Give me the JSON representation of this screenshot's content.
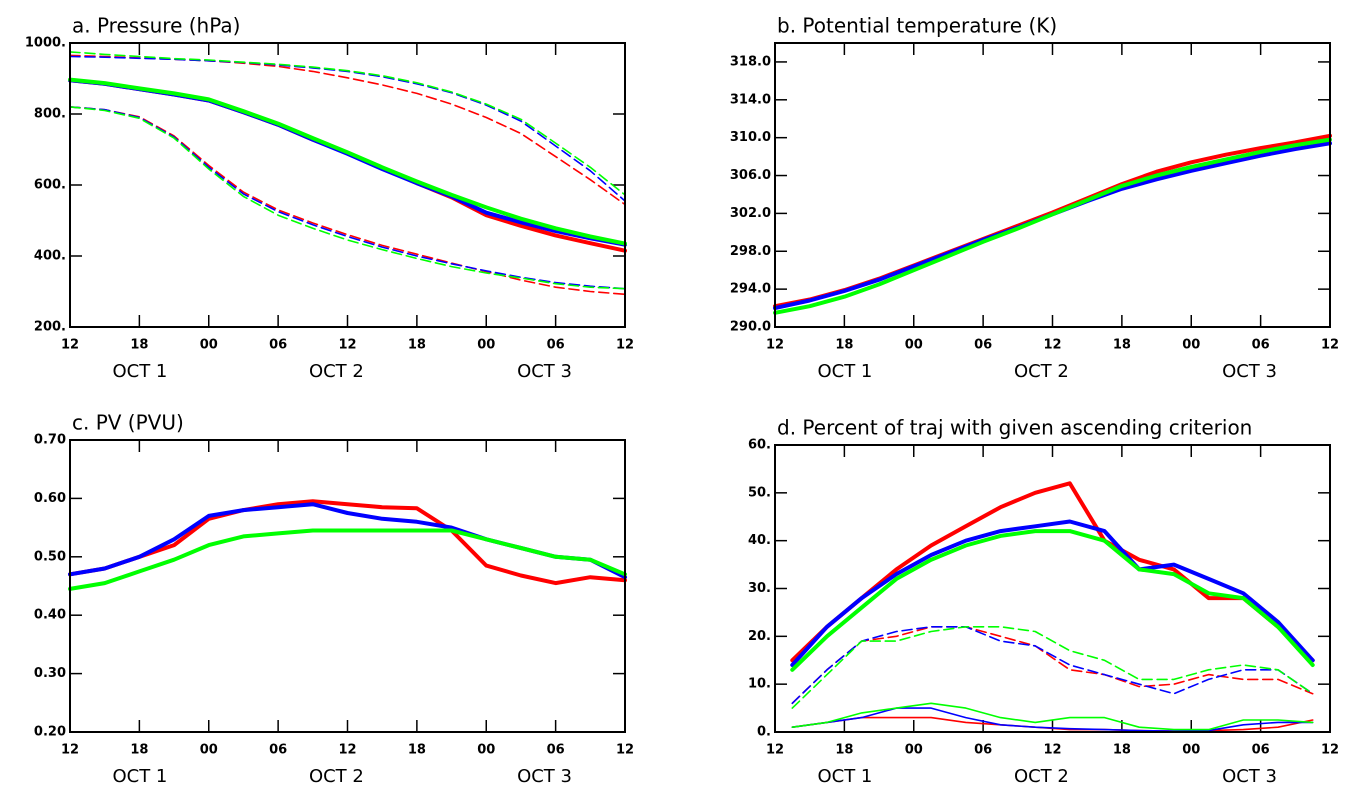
{
  "chart_data": [
    {
      "type": "line",
      "title": "a. Pressure (hPa)",
      "x": [
        0,
        3,
        6,
        9,
        12,
        15,
        18,
        21,
        24,
        27,
        30,
        33,
        36,
        39,
        42,
        45,
        48
      ],
      "xlim": [
        0,
        48
      ],
      "xticks": [
        {
          "value": 0,
          "label": "12"
        },
        {
          "value": 6,
          "label": "18"
        },
        {
          "value": 12,
          "label": "00"
        },
        {
          "value": 18,
          "label": "06"
        },
        {
          "value": 24,
          "label": "12"
        },
        {
          "value": 30,
          "label": "18"
        },
        {
          "value": 36,
          "label": "00"
        },
        {
          "value": 42,
          "label": "06"
        },
        {
          "value": 48,
          "label": "12"
        }
      ],
      "date_labels": [
        "OCT 1",
        "OCT 2",
        "OCT 3"
      ],
      "ylim": [
        200,
        1000
      ],
      "yticks": [
        {
          "value": 200,
          "label": "200."
        },
        {
          "value": 400,
          "label": "400."
        },
        {
          "value": 600,
          "label": "600."
        },
        {
          "value": 800,
          "label": "800."
        },
        {
          "value": 1000,
          "label": "1000."
        }
      ],
      "series": [
        {
          "color": "#ff0000",
          "style": "thick",
          "values": [
            895,
            885,
            870,
            855,
            838,
            805,
            770,
            728,
            690,
            648,
            605,
            565,
            515,
            485,
            458,
            436,
            415
          ]
        },
        {
          "color": "#0000ff",
          "style": "thick",
          "values": [
            895,
            885,
            870,
            855,
            838,
            805,
            770,
            728,
            688,
            645,
            605,
            568,
            522,
            495,
            470,
            450,
            432
          ]
        },
        {
          "color": "#00ff00",
          "style": "thick",
          "values": [
            897,
            887,
            872,
            858,
            841,
            808,
            773,
            732,
            692,
            650,
            610,
            572,
            537,
            505,
            478,
            455,
            435
          ]
        },
        {
          "color": "#ff0000",
          "style": "dashed",
          "values": [
            965,
            962,
            958,
            954,
            950,
            943,
            934,
            920,
            902,
            882,
            858,
            828,
            790,
            745,
            680,
            615,
            545
          ]
        },
        {
          "color": "#0000ff",
          "style": "dashed",
          "values": [
            962,
            960,
            957,
            954,
            950,
            945,
            938,
            930,
            920,
            905,
            885,
            860,
            825,
            780,
            710,
            640,
            555
          ]
        },
        {
          "color": "#00ff00",
          "style": "dashed",
          "values": [
            975,
            968,
            962,
            956,
            952,
            946,
            940,
            932,
            922,
            908,
            888,
            862,
            828,
            785,
            718,
            650,
            572
          ]
        },
        {
          "color": "#ff0000",
          "style": "dashed",
          "values": [
            820,
            812,
            792,
            738,
            655,
            580,
            530,
            493,
            460,
            430,
            405,
            380,
            356,
            332,
            312,
            300,
            292
          ]
        },
        {
          "color": "#0000ff",
          "style": "dashed",
          "values": [
            820,
            812,
            790,
            735,
            650,
            575,
            525,
            488,
            455,
            425,
            400,
            378,
            358,
            340,
            325,
            315,
            308
          ]
        },
        {
          "color": "#00ff00",
          "style": "dashed",
          "values": [
            820,
            810,
            788,
            732,
            645,
            568,
            515,
            478,
            445,
            418,
            393,
            370,
            352,
            338,
            322,
            312,
            308
          ]
        }
      ]
    },
    {
      "type": "line",
      "title": "b. Potential temperature (K)",
      "x": [
        0,
        3,
        6,
        9,
        12,
        15,
        18,
        21,
        24,
        27,
        30,
        33,
        36,
        39,
        42,
        45,
        48
      ],
      "xlim": [
        0,
        48
      ],
      "xticks": [
        {
          "value": 0,
          "label": "12"
        },
        {
          "value": 6,
          "label": "18"
        },
        {
          "value": 12,
          "label": "00"
        },
        {
          "value": 18,
          "label": "06"
        },
        {
          "value": 24,
          "label": "12"
        },
        {
          "value": 30,
          "label": "18"
        },
        {
          "value": 36,
          "label": "00"
        },
        {
          "value": 42,
          "label": "06"
        },
        {
          "value": 48,
          "label": "12"
        }
      ],
      "date_labels": [
        "OCT 1",
        "OCT 2",
        "OCT 3"
      ],
      "ylim": [
        290,
        320
      ],
      "yticks": [
        {
          "value": 290,
          "label": "290.0"
        },
        {
          "value": 294,
          "label": "294.0"
        },
        {
          "value": 298,
          "label": "298.0"
        },
        {
          "value": 302,
          "label": "302.0"
        },
        {
          "value": 306,
          "label": "306.0"
        },
        {
          "value": 310,
          "label": "310.0"
        },
        {
          "value": 314,
          "label": "314.0"
        },
        {
          "value": 318,
          "label": "318.0"
        }
      ],
      "series": [
        {
          "color": "#ff0000",
          "style": "thick",
          "values": [
            292.2,
            292.9,
            293.9,
            295.1,
            296.5,
            297.9,
            299.3,
            300.7,
            302.1,
            303.6,
            305.1,
            306.4,
            307.4,
            308.2,
            308.9,
            309.5,
            310.2
          ]
        },
        {
          "color": "#0000ff",
          "style": "thick",
          "values": [
            292.0,
            292.8,
            293.8,
            295.0,
            296.4,
            297.8,
            299.2,
            300.5,
            301.9,
            303.3,
            304.6,
            305.6,
            306.5,
            307.3,
            308.1,
            308.8,
            309.4
          ]
        },
        {
          "color": "#00ff00",
          "style": "thick",
          "values": [
            291.5,
            292.2,
            293.2,
            294.5,
            296.0,
            297.5,
            299.0,
            300.4,
            301.9,
            303.4,
            304.9,
            306.0,
            306.9,
            307.7,
            308.5,
            309.2,
            309.8
          ]
        }
      ]
    },
    {
      "type": "line",
      "title": "c. PV (PVU)",
      "x": [
        0,
        3,
        6,
        9,
        12,
        15,
        18,
        21,
        24,
        27,
        30,
        33,
        36,
        39,
        42,
        45,
        48
      ],
      "xlim": [
        0,
        48
      ],
      "xticks": [
        {
          "value": 0,
          "label": "12"
        },
        {
          "value": 6,
          "label": "18"
        },
        {
          "value": 12,
          "label": "00"
        },
        {
          "value": 18,
          "label": "06"
        },
        {
          "value": 24,
          "label": "12"
        },
        {
          "value": 30,
          "label": "18"
        },
        {
          "value": 36,
          "label": "00"
        },
        {
          "value": 42,
          "label": "06"
        },
        {
          "value": 48,
          "label": "12"
        }
      ],
      "date_labels": [
        "OCT 1",
        "OCT 2",
        "OCT 3"
      ],
      "ylim": [
        0.2,
        0.7
      ],
      "yticks": [
        {
          "value": 0.2,
          "label": "0.20"
        },
        {
          "value": 0.3,
          "label": "0.30"
        },
        {
          "value": 0.4,
          "label": "0.40"
        },
        {
          "value": 0.5,
          "label": "0.50"
        },
        {
          "value": 0.6,
          "label": "0.60"
        },
        {
          "value": 0.7,
          "label": "0.70"
        }
      ],
      "series": [
        {
          "color": "#ff0000",
          "style": "thick",
          "values": [
            0.47,
            0.48,
            0.5,
            0.52,
            0.565,
            0.58,
            0.59,
            0.595,
            0.59,
            0.585,
            0.583,
            0.545,
            0.485,
            0.468,
            0.455,
            0.465,
            0.46
          ]
        },
        {
          "color": "#0000ff",
          "style": "thick",
          "values": [
            0.47,
            0.48,
            0.5,
            0.53,
            0.57,
            0.58,
            0.585,
            0.59,
            0.575,
            0.565,
            0.56,
            0.55,
            0.53,
            0.515,
            0.5,
            0.495,
            0.465
          ]
        },
        {
          "color": "#00ff00",
          "style": "thick",
          "values": [
            0.445,
            0.455,
            0.475,
            0.495,
            0.52,
            0.535,
            0.54,
            0.545,
            0.545,
            0.545,
            0.545,
            0.545,
            0.53,
            0.515,
            0.5,
            0.495,
            0.47
          ]
        }
      ]
    },
    {
      "type": "line",
      "title": "d. Percent of traj with given ascending criterion",
      "x": [
        1.5,
        4.5,
        7.5,
        10.5,
        13.5,
        16.5,
        19.5,
        22.5,
        25.5,
        28.5,
        31.5,
        34.5,
        37.5,
        40.5,
        43.5,
        46.5
      ],
      "xlim": [
        0,
        48
      ],
      "xticks": [
        {
          "value": 0,
          "label": "12"
        },
        {
          "value": 6,
          "label": "18"
        },
        {
          "value": 12,
          "label": "00"
        },
        {
          "value": 18,
          "label": "06"
        },
        {
          "value": 24,
          "label": "12"
        },
        {
          "value": 30,
          "label": "18"
        },
        {
          "value": 36,
          "label": "00"
        },
        {
          "value": 42,
          "label": "06"
        },
        {
          "value": 48,
          "label": "12"
        }
      ],
      "date_labels": [
        "OCT 1",
        "OCT 2",
        "OCT 3"
      ],
      "ylim": [
        0,
        60
      ],
      "yticks": [
        {
          "value": 0,
          "label": "0."
        },
        {
          "value": 10,
          "label": "10."
        },
        {
          "value": 20,
          "label": "20."
        },
        {
          "value": 30,
          "label": "30."
        },
        {
          "value": 40,
          "label": "40."
        },
        {
          "value": 50,
          "label": "50."
        },
        {
          "value": 60,
          "label": "60."
        }
      ],
      "series": [
        {
          "color": "#ff0000",
          "style": "thick",
          "values": [
            15,
            22,
            28,
            34,
            39,
            43,
            47,
            50,
            52,
            40,
            36,
            34,
            28,
            28,
            22,
            15
          ]
        },
        {
          "color": "#0000ff",
          "style": "thick",
          "values": [
            14,
            22,
            28,
            33,
            37,
            40,
            42,
            43,
            44,
            42,
            34,
            35,
            32,
            29,
            23,
            15
          ]
        },
        {
          "color": "#00ff00",
          "style": "thick",
          "values": [
            13,
            20,
            26,
            32,
            36,
            39,
            41,
            42,
            42,
            40,
            34,
            33,
            29,
            28,
            22,
            14
          ]
        },
        {
          "color": "#ff0000",
          "style": "dashed",
          "values": [
            6,
            13,
            19,
            20,
            22,
            22,
            20,
            18,
            13,
            12,
            9.5,
            10,
            12,
            11,
            11,
            8
          ]
        },
        {
          "color": "#0000ff",
          "style": "dashed",
          "values": [
            6,
            13,
            19,
            21,
            22,
            22,
            19,
            18,
            14,
            12,
            10,
            8,
            11,
            13,
            13,
            8
          ]
        },
        {
          "color": "#00ff00",
          "style": "dashed",
          "values": [
            5,
            12,
            19,
            19,
            21,
            22,
            22,
            21,
            17,
            15,
            11,
            11,
            13,
            14,
            13,
            8
          ]
        },
        {
          "color": "#ff0000",
          "style": "thin",
          "values": [
            1,
            2,
            3,
            3,
            3,
            2,
            1.5,
            1,
            0.5,
            0.5,
            0.3,
            0.2,
            0.3,
            0.5,
            1,
            2.5
          ]
        },
        {
          "color": "#0000ff",
          "style": "thin",
          "values": [
            1,
            2,
            3,
            5,
            5,
            3,
            1.5,
            1,
            0.7,
            0.5,
            0.3,
            0.2,
            0.3,
            1.5,
            2,
            2
          ]
        },
        {
          "color": "#00ff00",
          "style": "thin",
          "values": [
            1,
            2,
            4,
            5,
            6,
            5,
            3,
            2,
            3,
            3,
            1,
            0.5,
            0.5,
            2.5,
            2.5,
            2
          ]
        }
      ]
    }
  ]
}
